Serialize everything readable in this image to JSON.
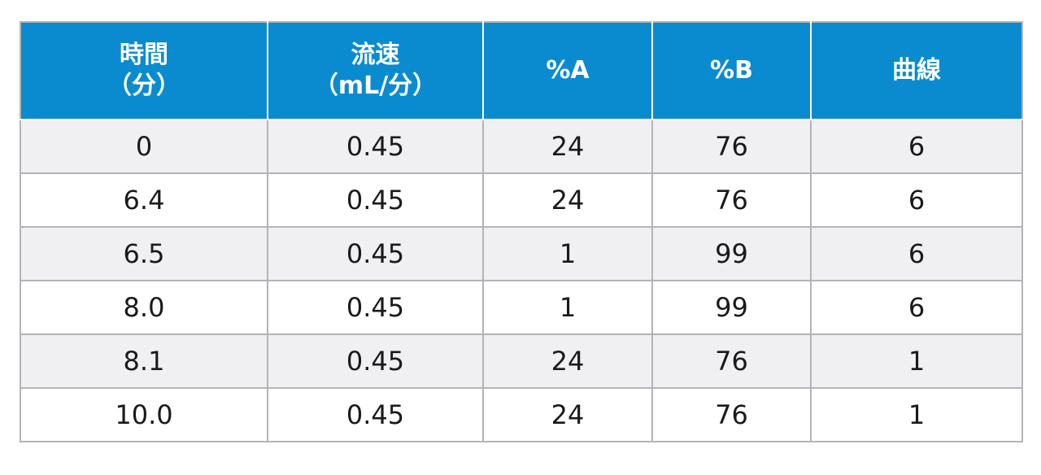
{
  "table": {
    "headers": [
      {
        "line1": "時間",
        "line2": "（分）"
      },
      {
        "line1": "流速",
        "line2": "（mL/分）"
      },
      {
        "line1": "%A",
        "line2": ""
      },
      {
        "line1": "%B",
        "line2": ""
      },
      {
        "line1": "曲線",
        "line2": ""
      }
    ],
    "rows": [
      [
        "0",
        "0.45",
        "24",
        "76",
        "6"
      ],
      [
        "6.4",
        "0.45",
        "24",
        "76",
        "6"
      ],
      [
        "6.5",
        "0.45",
        "1",
        "99",
        "6"
      ],
      [
        "8.0",
        "0.45",
        "1",
        "99",
        "6"
      ],
      [
        "8.1",
        "0.45",
        "24",
        "76",
        "1"
      ],
      [
        "10.0",
        "0.45",
        "24",
        "76",
        "1"
      ]
    ]
  },
  "colors": {
    "header_bg": "#0a8bd0",
    "header_text": "#ffffff",
    "row_alt_bg": "#f0f0f3",
    "grid": "#b4b4b8"
  }
}
